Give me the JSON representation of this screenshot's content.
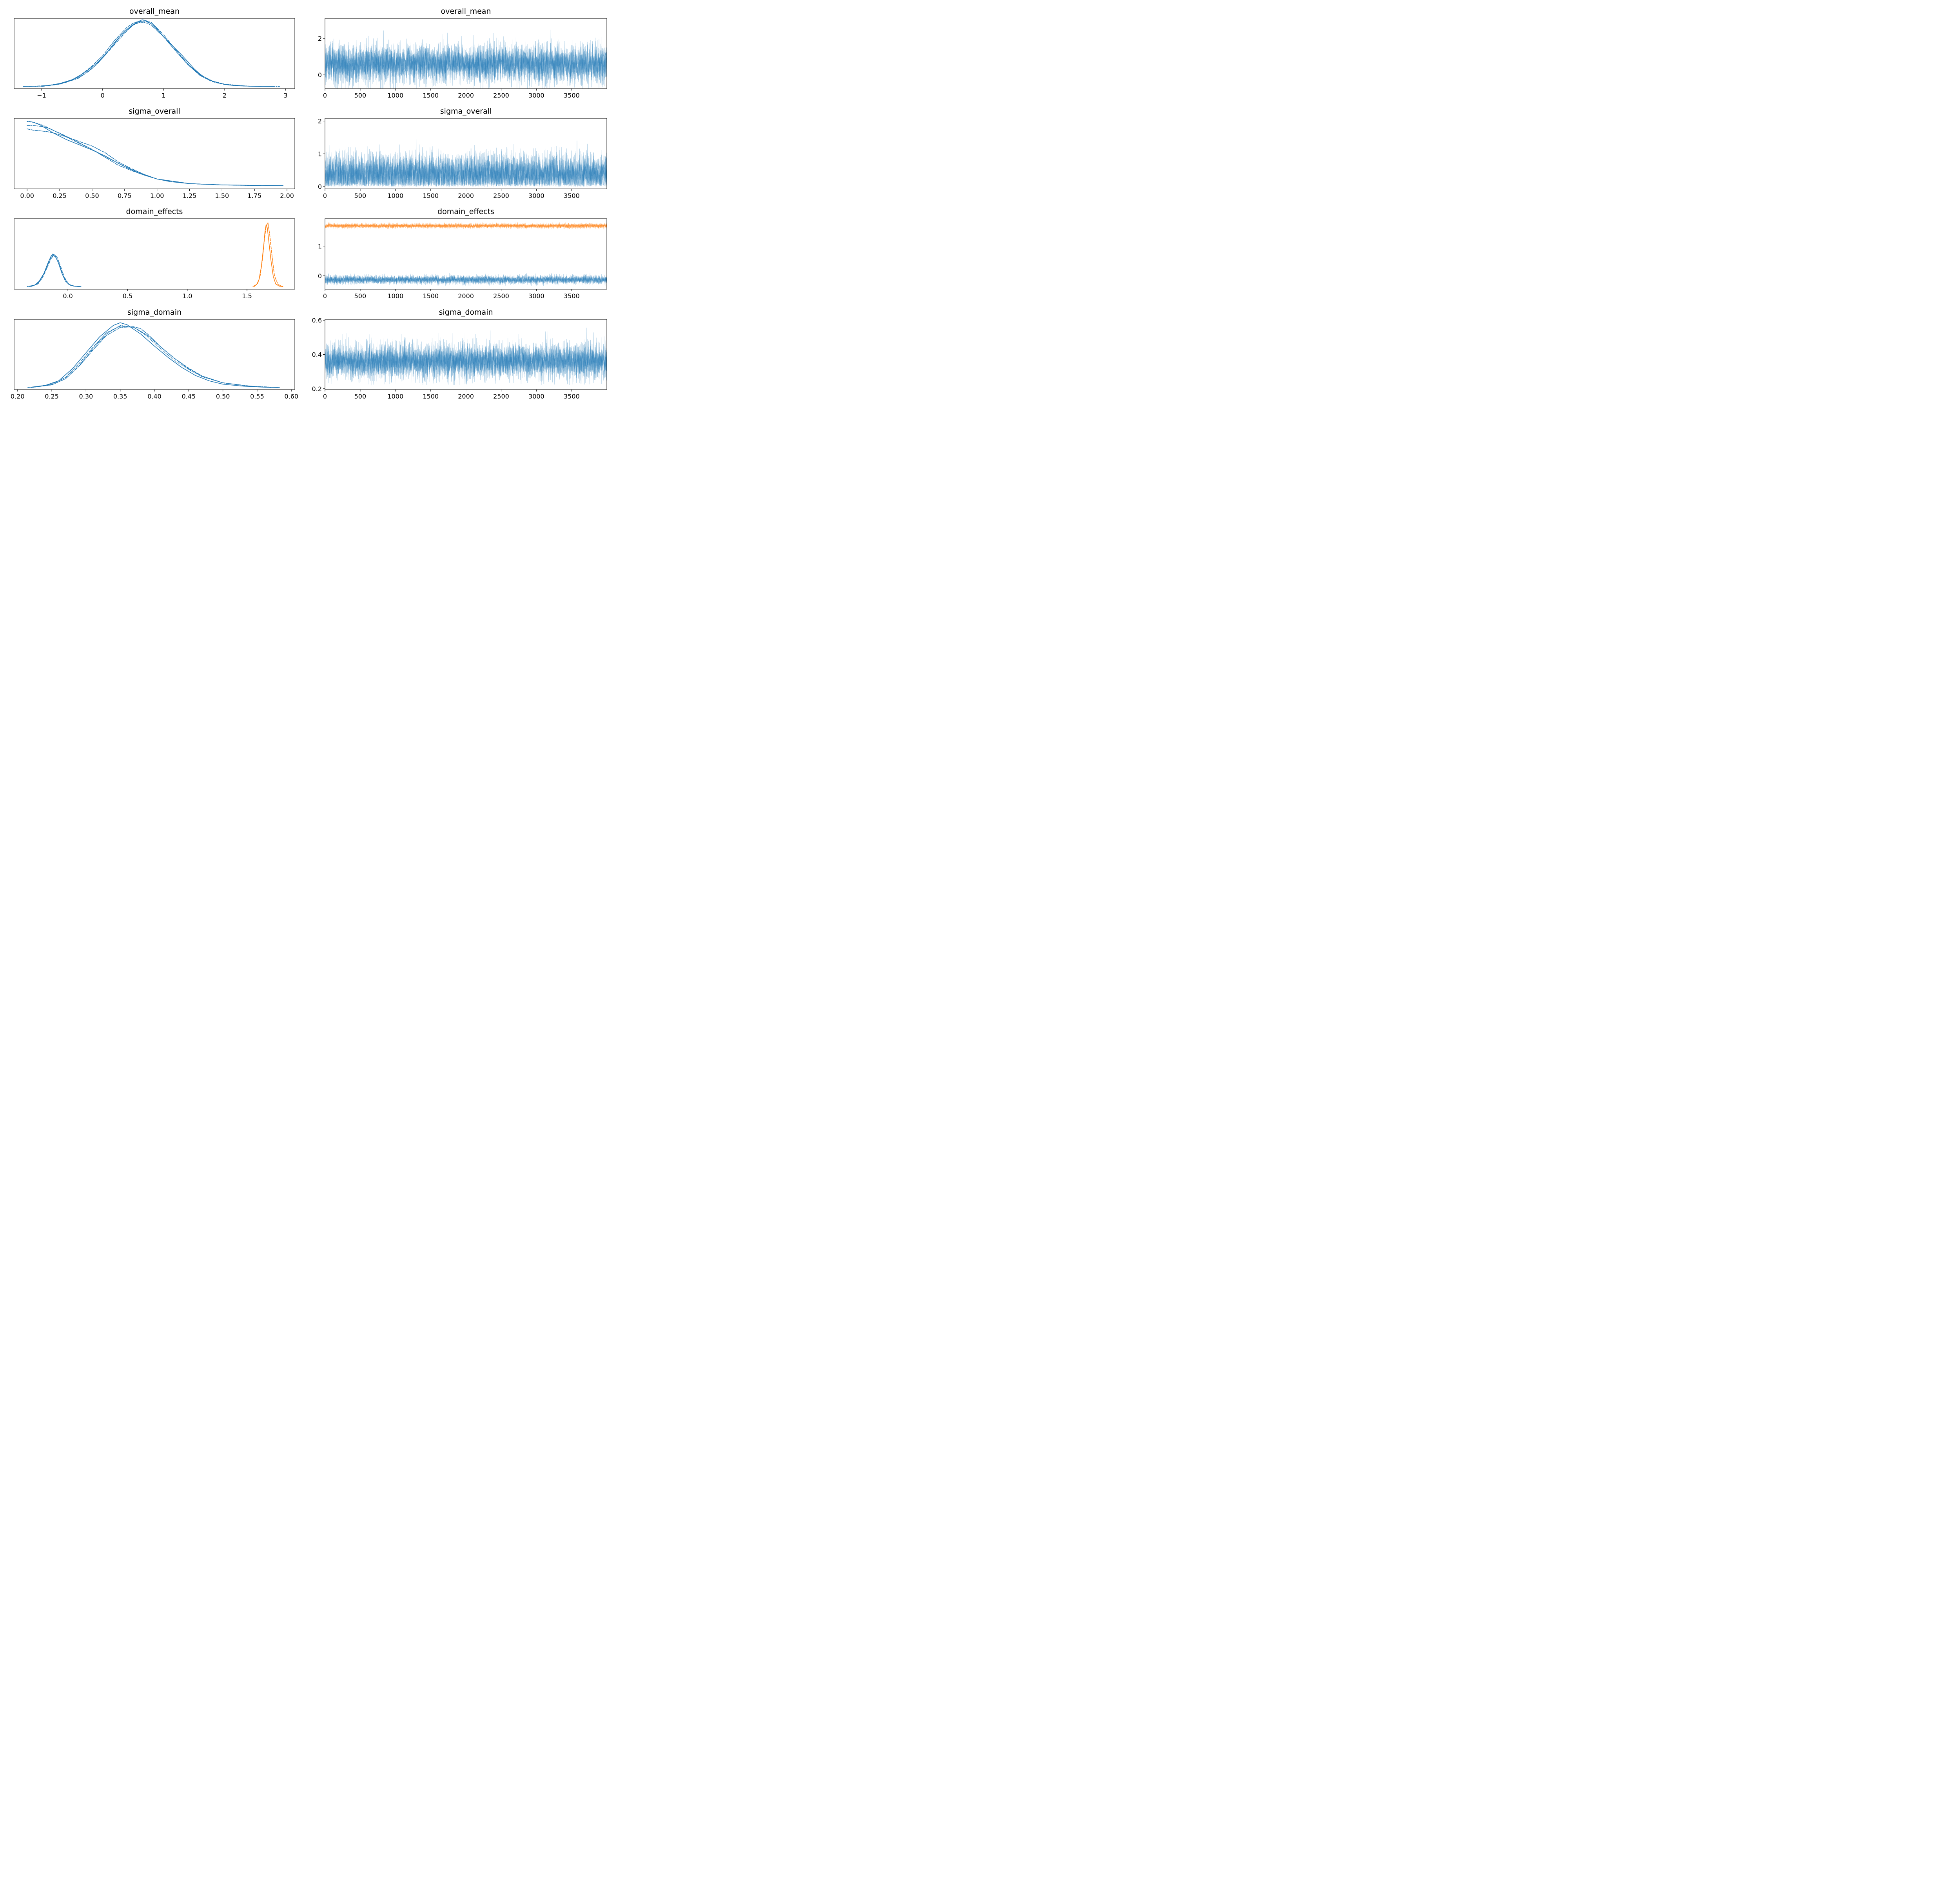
{
  "chart_data": [
    {
      "panel": "kde",
      "type": "line",
      "title": "overall_mean",
      "xlim": [
        -1.45,
        3.15
      ],
      "ylim": [
        -0.03,
        1.0
      ],
      "x_ticks": [
        -1,
        0,
        1,
        2,
        3
      ],
      "x_tick_labels": [
        "−1",
        "0",
        "1",
        "2",
        "3"
      ],
      "y_ticks_shown": false,
      "series": [
        {
          "color": "#1f77b4",
          "dash": "solid",
          "x": [
            -1.3,
            -1.0,
            -0.75,
            -0.5,
            -0.3,
            -0.1,
            0.0,
            0.1,
            0.2,
            0.3,
            0.4,
            0.5,
            0.6,
            0.65,
            0.7,
            0.8,
            0.9,
            1.0,
            1.1,
            1.2,
            1.3,
            1.4,
            1.5,
            1.6,
            1.7,
            1.8,
            2.0,
            2.2,
            2.5,
            2.8
          ],
          "y": [
            0.0,
            0.006,
            0.03,
            0.1,
            0.2,
            0.34,
            0.43,
            0.53,
            0.65,
            0.75,
            0.84,
            0.91,
            0.96,
            0.98,
            0.97,
            0.92,
            0.83,
            0.73,
            0.64,
            0.55,
            0.46,
            0.36,
            0.26,
            0.18,
            0.12,
            0.08,
            0.03,
            0.01,
            0.003,
            0.0
          ]
        },
        {
          "color": "#1f77b4",
          "dash": "dashed",
          "x": [
            -1.2,
            -0.9,
            -0.6,
            -0.4,
            -0.2,
            0.0,
            0.2,
            0.4,
            0.5,
            0.6,
            0.7,
            0.8,
            0.9,
            1.0,
            1.2,
            1.4,
            1.6,
            1.8,
            2.0,
            2.3,
            2.6
          ],
          "y": [
            0.0,
            0.015,
            0.06,
            0.14,
            0.28,
            0.45,
            0.68,
            0.87,
            0.93,
            0.96,
            0.96,
            0.92,
            0.84,
            0.73,
            0.52,
            0.32,
            0.16,
            0.07,
            0.03,
            0.008,
            0.0
          ]
        },
        {
          "color": "#1f77b4",
          "dash": "dotted",
          "x": [
            -1.1,
            -0.8,
            -0.5,
            -0.3,
            -0.1,
            0.1,
            0.3,
            0.5,
            0.6,
            0.7,
            0.8,
            1.0,
            1.2,
            1.4,
            1.6,
            1.8,
            2.0,
            2.3,
            2.6
          ],
          "y": [
            0.0,
            0.025,
            0.09,
            0.18,
            0.32,
            0.52,
            0.75,
            0.9,
            0.94,
            0.94,
            0.9,
            0.73,
            0.52,
            0.32,
            0.17,
            0.08,
            0.035,
            0.01,
            0.0
          ]
        },
        {
          "color": "#1f77b4",
          "dash": "dashdot",
          "x": [
            -1.0,
            -0.7,
            -0.4,
            -0.2,
            0.0,
            0.2,
            0.4,
            0.5,
            0.6,
            0.7,
            0.8,
            1.0,
            1.2,
            1.4,
            1.6,
            1.8,
            2.0,
            2.4,
            2.9
          ],
          "y": [
            0.0,
            0.035,
            0.12,
            0.24,
            0.42,
            0.62,
            0.82,
            0.9,
            0.95,
            0.97,
            0.94,
            0.76,
            0.54,
            0.33,
            0.17,
            0.08,
            0.03,
            0.005,
            0.0
          ]
        }
      ]
    },
    {
      "panel": "trace",
      "type": "line",
      "title": "overall_mean",
      "xlim": [
        0,
        3999
      ],
      "ylim": [
        -0.75,
        3.1
      ],
      "x_ticks": [
        0,
        500,
        1000,
        1500,
        2000,
        2500,
        3000,
        3500
      ],
      "x_tick_labels": [
        "0",
        "500",
        "1000",
        "1500",
        "2000",
        "2500",
        "3000",
        "3500"
      ],
      "y_ticks": [
        0,
        2
      ],
      "y_tick_labels": [
        "0",
        "2"
      ],
      "n_draws": 4000,
      "series": [
        {
          "color": "#1f77b4",
          "center": 0.6,
          "spread": 0.5,
          "min": -1.3,
          "max": 2.9
        }
      ]
    },
    {
      "panel": "kde",
      "type": "line",
      "title": "sigma_overall",
      "xlim": [
        -0.1,
        2.06
      ],
      "ylim": [
        -0.05,
        1.02
      ],
      "x_ticks": [
        0.0,
        0.25,
        0.5,
        0.75,
        1.0,
        1.25,
        1.5,
        1.75,
        2.0
      ],
      "x_tick_labels": [
        "0.00",
        "0.25",
        "0.50",
        "0.75",
        "1.00",
        "1.25",
        "1.50",
        "1.75",
        "2.00"
      ],
      "y_ticks_shown": false,
      "series": [
        {
          "color": "#1f77b4",
          "dash": "solid",
          "x": [
            0.0,
            0.05,
            0.1,
            0.15,
            0.2,
            0.3,
            0.4,
            0.5,
            0.6,
            0.7,
            0.8,
            0.9,
            1.0,
            1.1,
            1.25,
            1.5,
            1.75,
            1.97
          ],
          "y": [
            0.98,
            0.96,
            0.92,
            0.86,
            0.8,
            0.7,
            0.62,
            0.54,
            0.45,
            0.34,
            0.24,
            0.16,
            0.1,
            0.06,
            0.03,
            0.01,
            0.004,
            0.0
          ]
        },
        {
          "color": "#1f77b4",
          "dash": "dashed",
          "x": [
            0.0,
            0.05,
            0.1,
            0.15,
            0.2,
            0.3,
            0.4,
            0.5,
            0.6,
            0.7,
            0.8,
            0.9,
            1.0,
            1.25,
            1.5,
            1.8
          ],
          "y": [
            0.86,
            0.84,
            0.83,
            0.82,
            0.8,
            0.74,
            0.67,
            0.6,
            0.5,
            0.36,
            0.26,
            0.17,
            0.1,
            0.03,
            0.01,
            0.0
          ]
        },
        {
          "color": "#1f77b4",
          "dash": "dotted",
          "x": [
            0.0,
            0.05,
            0.1,
            0.15,
            0.2,
            0.3,
            0.4,
            0.5,
            0.6,
            0.7,
            0.8,
            0.9,
            1.0,
            1.25,
            1.5,
            1.8
          ],
          "y": [
            0.97,
            0.96,
            0.93,
            0.89,
            0.84,
            0.74,
            0.64,
            0.55,
            0.44,
            0.34,
            0.25,
            0.17,
            0.1,
            0.03,
            0.01,
            0.0
          ]
        },
        {
          "color": "#1f77b4",
          "dash": "dashdot",
          "x": [
            0.0,
            0.05,
            0.1,
            0.15,
            0.2,
            0.3,
            0.4,
            0.5,
            0.6,
            0.7,
            0.8,
            0.9,
            1.0,
            1.25,
            1.5,
            1.8
          ],
          "y": [
            0.91,
            0.91,
            0.9,
            0.88,
            0.84,
            0.75,
            0.65,
            0.55,
            0.43,
            0.31,
            0.23,
            0.16,
            0.1,
            0.03,
            0.01,
            0.0
          ]
        }
      ]
    },
    {
      "panel": "trace",
      "type": "line",
      "title": "sigma_overall",
      "xlim": [
        0,
        3999
      ],
      "ylim": [
        -0.07,
        2.08
      ],
      "x_ticks": [
        0,
        500,
        1000,
        1500,
        2000,
        2500,
        3000,
        3500
      ],
      "x_tick_labels": [
        "0",
        "500",
        "1000",
        "1500",
        "2000",
        "2500",
        "3000",
        "3500"
      ],
      "y_ticks": [
        0,
        1,
        2
      ],
      "y_tick_labels": [
        "0",
        "1",
        "2"
      ],
      "n_draws": 4000,
      "series": [
        {
          "color": "#1f77b4",
          "center": 0.38,
          "spread": 0.3,
          "min": 0.0,
          "max": 1.95
        }
      ]
    },
    {
      "panel": "kde",
      "type": "line",
      "title": "domain_effects",
      "xlim": [
        -0.45,
        1.9
      ],
      "ylim": [
        -0.04,
        1.02
      ],
      "x_ticks": [
        0.0,
        0.5,
        1.0,
        1.5
      ],
      "x_tick_labels": [
        "0.0",
        "0.5",
        "1.0",
        "1.5"
      ],
      "y_ticks_shown": false,
      "series": [
        {
          "color": "#1f77b4",
          "dash": "solid",
          "x": [
            -0.34,
            -0.28,
            -0.24,
            -0.2,
            -0.17,
            -0.14,
            -0.125,
            -0.11,
            -0.08,
            -0.05,
            -0.02,
            0.02,
            0.06,
            0.11
          ],
          "y": [
            0.0,
            0.02,
            0.08,
            0.2,
            0.34,
            0.46,
            0.49,
            0.47,
            0.36,
            0.2,
            0.08,
            0.02,
            0.004,
            0.0
          ]
        },
        {
          "color": "#1f77b4",
          "dash": "dashed",
          "x": [
            -0.32,
            -0.26,
            -0.22,
            -0.18,
            -0.15,
            -0.125,
            -0.1,
            -0.07,
            -0.04,
            0.0,
            0.05,
            0.1
          ],
          "y": [
            0.0,
            0.03,
            0.12,
            0.28,
            0.41,
            0.47,
            0.44,
            0.32,
            0.16,
            0.04,
            0.005,
            0.0
          ]
        },
        {
          "color": "#1f77b4",
          "dash": "dashdot",
          "x": [
            -0.31,
            -0.25,
            -0.21,
            -0.17,
            -0.14,
            -0.115,
            -0.09,
            -0.06,
            -0.03,
            0.01,
            0.06,
            0.1
          ],
          "y": [
            0.0,
            0.04,
            0.14,
            0.3,
            0.42,
            0.48,
            0.44,
            0.3,
            0.14,
            0.03,
            0.004,
            0.0
          ]
        },
        {
          "color": "#ff7f0e",
          "dash": "solid",
          "x": [
            1.55,
            1.58,
            1.6,
            1.62,
            1.64,
            1.65,
            1.66,
            1.67,
            1.68,
            1.7,
            1.72,
            1.74,
            1.77,
            1.8
          ],
          "y": [
            0.0,
            0.03,
            0.1,
            0.3,
            0.62,
            0.82,
            0.93,
            0.88,
            0.72,
            0.4,
            0.15,
            0.04,
            0.005,
            0.0
          ]
        },
        {
          "color": "#ff7f0e",
          "dash": "dashed",
          "x": [
            1.56,
            1.59,
            1.61,
            1.63,
            1.645,
            1.66,
            1.675,
            1.69,
            1.71,
            1.73,
            1.76,
            1.8
          ],
          "y": [
            0.0,
            0.05,
            0.16,
            0.42,
            0.7,
            0.9,
            0.96,
            0.78,
            0.45,
            0.16,
            0.03,
            0.0
          ]
        }
      ]
    },
    {
      "panel": "trace",
      "type": "line",
      "title": "domain_effects",
      "xlim": [
        0,
        3999
      ],
      "ylim": [
        -0.45,
        1.92
      ],
      "x_ticks": [
        0,
        500,
        1000,
        1500,
        2000,
        2500,
        3000,
        3500
      ],
      "x_tick_labels": [
        "0",
        "500",
        "1000",
        "1500",
        "2000",
        "2500",
        "3000",
        "3500"
      ],
      "y_ticks": [
        0,
        1
      ],
      "y_tick_labels": [
        "0",
        "1"
      ],
      "n_draws": 4000,
      "series": [
        {
          "color": "#ff7f0e",
          "center": 1.68,
          "spread": 0.04,
          "min": 1.56,
          "max": 1.8
        },
        {
          "color": "#1f77b4",
          "center": -0.13,
          "spread": 0.07,
          "min": -0.34,
          "max": 0.1
        }
      ]
    },
    {
      "panel": "kde",
      "type": "line",
      "title": "sigma_domain",
      "xlim": [
        0.195,
        0.605
      ],
      "ylim": [
        -0.03,
        1.02
      ],
      "x_ticks": [
        0.2,
        0.25,
        0.3,
        0.35,
        0.4,
        0.45,
        0.5,
        0.55,
        0.6
      ],
      "x_tick_labels": [
        "0.20",
        "0.25",
        "0.30",
        "0.35",
        "0.40",
        "0.45",
        "0.50",
        "0.55",
        "0.60"
      ],
      "y_ticks_shown": false,
      "series": [
        {
          "color": "#1f77b4",
          "dash": "solid",
          "x": [
            0.215,
            0.24,
            0.26,
            0.28,
            0.3,
            0.32,
            0.34,
            0.35,
            0.36,
            0.38,
            0.4,
            0.42,
            0.44,
            0.46,
            0.48,
            0.5,
            0.53,
            0.56,
            0.58
          ],
          "y": [
            0.0,
            0.03,
            0.1,
            0.28,
            0.52,
            0.76,
            0.93,
            0.97,
            0.94,
            0.8,
            0.62,
            0.45,
            0.3,
            0.18,
            0.1,
            0.05,
            0.02,
            0.005,
            0.0
          ]
        },
        {
          "color": "#1f77b4",
          "dash": "dashed",
          "x": [
            0.22,
            0.25,
            0.27,
            0.29,
            0.31,
            0.33,
            0.35,
            0.37,
            0.39,
            0.41,
            0.43,
            0.45,
            0.47,
            0.5,
            0.54,
            0.57
          ],
          "y": [
            0.0,
            0.05,
            0.15,
            0.36,
            0.6,
            0.82,
            0.92,
            0.9,
            0.78,
            0.6,
            0.43,
            0.29,
            0.17,
            0.07,
            0.02,
            0.0
          ]
        },
        {
          "color": "#1f77b4",
          "dash": "dotted",
          "x": [
            0.22,
            0.25,
            0.27,
            0.29,
            0.31,
            0.33,
            0.35,
            0.37,
            0.39,
            0.41,
            0.43,
            0.45,
            0.47,
            0.5,
            0.54,
            0.57
          ],
          "y": [
            0.0,
            0.04,
            0.13,
            0.33,
            0.58,
            0.8,
            0.93,
            0.9,
            0.76,
            0.57,
            0.4,
            0.27,
            0.16,
            0.07,
            0.02,
            0.0
          ]
        },
        {
          "color": "#1f77b4",
          "dash": "dashdot",
          "x": [
            0.22,
            0.25,
            0.27,
            0.29,
            0.31,
            0.33,
            0.35,
            0.37,
            0.38,
            0.39,
            0.41,
            0.43,
            0.45,
            0.47,
            0.5,
            0.54,
            0.583
          ],
          "y": [
            0.0,
            0.04,
            0.13,
            0.32,
            0.56,
            0.78,
            0.9,
            0.91,
            0.88,
            0.8,
            0.6,
            0.43,
            0.28,
            0.17,
            0.07,
            0.02,
            0.0
          ]
        }
      ]
    },
    {
      "panel": "trace",
      "type": "line",
      "title": "sigma_domain",
      "xlim": [
        0,
        3999
      ],
      "ylim": [
        0.195,
        0.605
      ],
      "x_ticks": [
        0,
        500,
        1000,
        1500,
        2000,
        2500,
        3000,
        3500
      ],
      "x_tick_labels": [
        "0",
        "500",
        "1000",
        "1500",
        "2000",
        "2500",
        "3000",
        "3500"
      ],
      "y_ticks": [
        0.2,
        0.4,
        0.6
      ],
      "y_tick_labels": [
        "0.2",
        "0.4",
        "0.6"
      ],
      "n_draws": 4000,
      "series": [
        {
          "color": "#1f77b4",
          "center": 0.36,
          "spread": 0.05,
          "min": 0.22,
          "max": 0.585
        }
      ]
    }
  ]
}
